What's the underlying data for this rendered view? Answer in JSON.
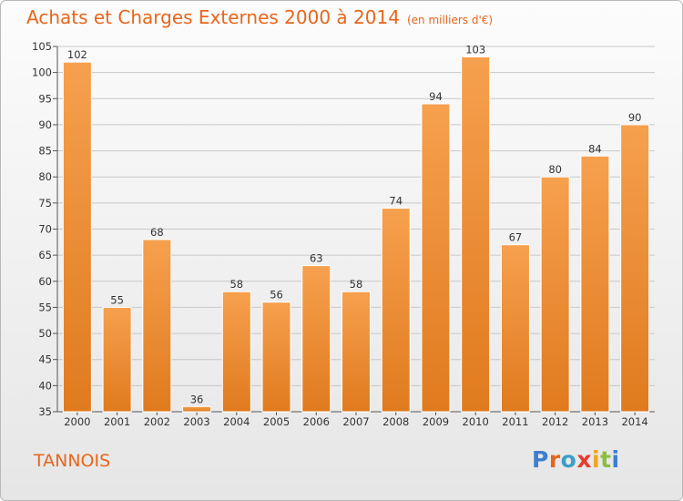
{
  "chart_data": {
    "type": "bar",
    "title": "Achats et Charges Externes 2000 à 2014",
    "subtitle": "(en milliers d'€)",
    "categories": [
      "2000",
      "2001",
      "2002",
      "2003",
      "2004",
      "2005",
      "2006",
      "2007",
      "2008",
      "2009",
      "2010",
      "2011",
      "2012",
      "2013",
      "2014"
    ],
    "values": [
      102,
      55,
      68,
      36,
      58,
      56,
      63,
      58,
      74,
      94,
      103,
      67,
      80,
      84,
      90
    ],
    "ylim": [
      35,
      105
    ],
    "yticks": [
      35,
      40,
      45,
      50,
      55,
      60,
      65,
      70,
      75,
      80,
      85,
      90,
      95,
      100,
      105
    ],
    "grid": true,
    "colors": {
      "bar_top": "#f6a04e",
      "bar_bottom": "#e07a1e",
      "bar_edge": "#ffffff",
      "title": "#e8661c"
    }
  },
  "footer": {
    "commune": "TANNOIS",
    "logo": "Proxiti"
  }
}
